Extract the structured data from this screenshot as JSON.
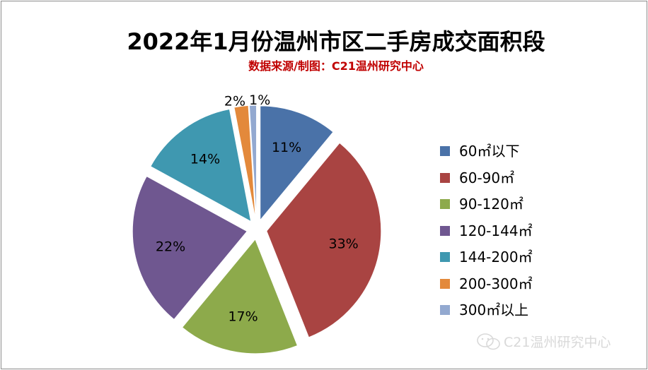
{
  "title": "2022年1月份温州市区二手房成交面积段",
  "subtitle": "数据来源/制图：C21温州研究中心",
  "watermark": "C21温州研究中心",
  "chart_data": {
    "type": "pie",
    "title": "2022年1月份温州市区二手房成交面积段",
    "subtitle": "数据来源/制图：C21温州研究中心",
    "legend_position": "right",
    "slices": [
      {
        "label": "60㎡以下",
        "value": 11,
        "display": "11%",
        "color": "#4a72a8"
      },
      {
        "label": "60-90㎡",
        "value": 33,
        "display": "33%",
        "color": "#a94442"
      },
      {
        "label": "90-120㎡",
        "value": 17,
        "display": "17%",
        "color": "#8daa4b"
      },
      {
        "label": "120-144㎡",
        "value": 22,
        "display": "22%",
        "color": "#6f5790"
      },
      {
        "label": "144-200㎡",
        "value": 14,
        "display": "14%",
        "color": "#3f98b0"
      },
      {
        "label": "200-300㎡",
        "value": 2,
        "display": "2%",
        "color": "#e3893b"
      },
      {
        "label": "300㎡以上",
        "value": 1,
        "display": "1%",
        "color": "#93a9d0"
      }
    ]
  }
}
